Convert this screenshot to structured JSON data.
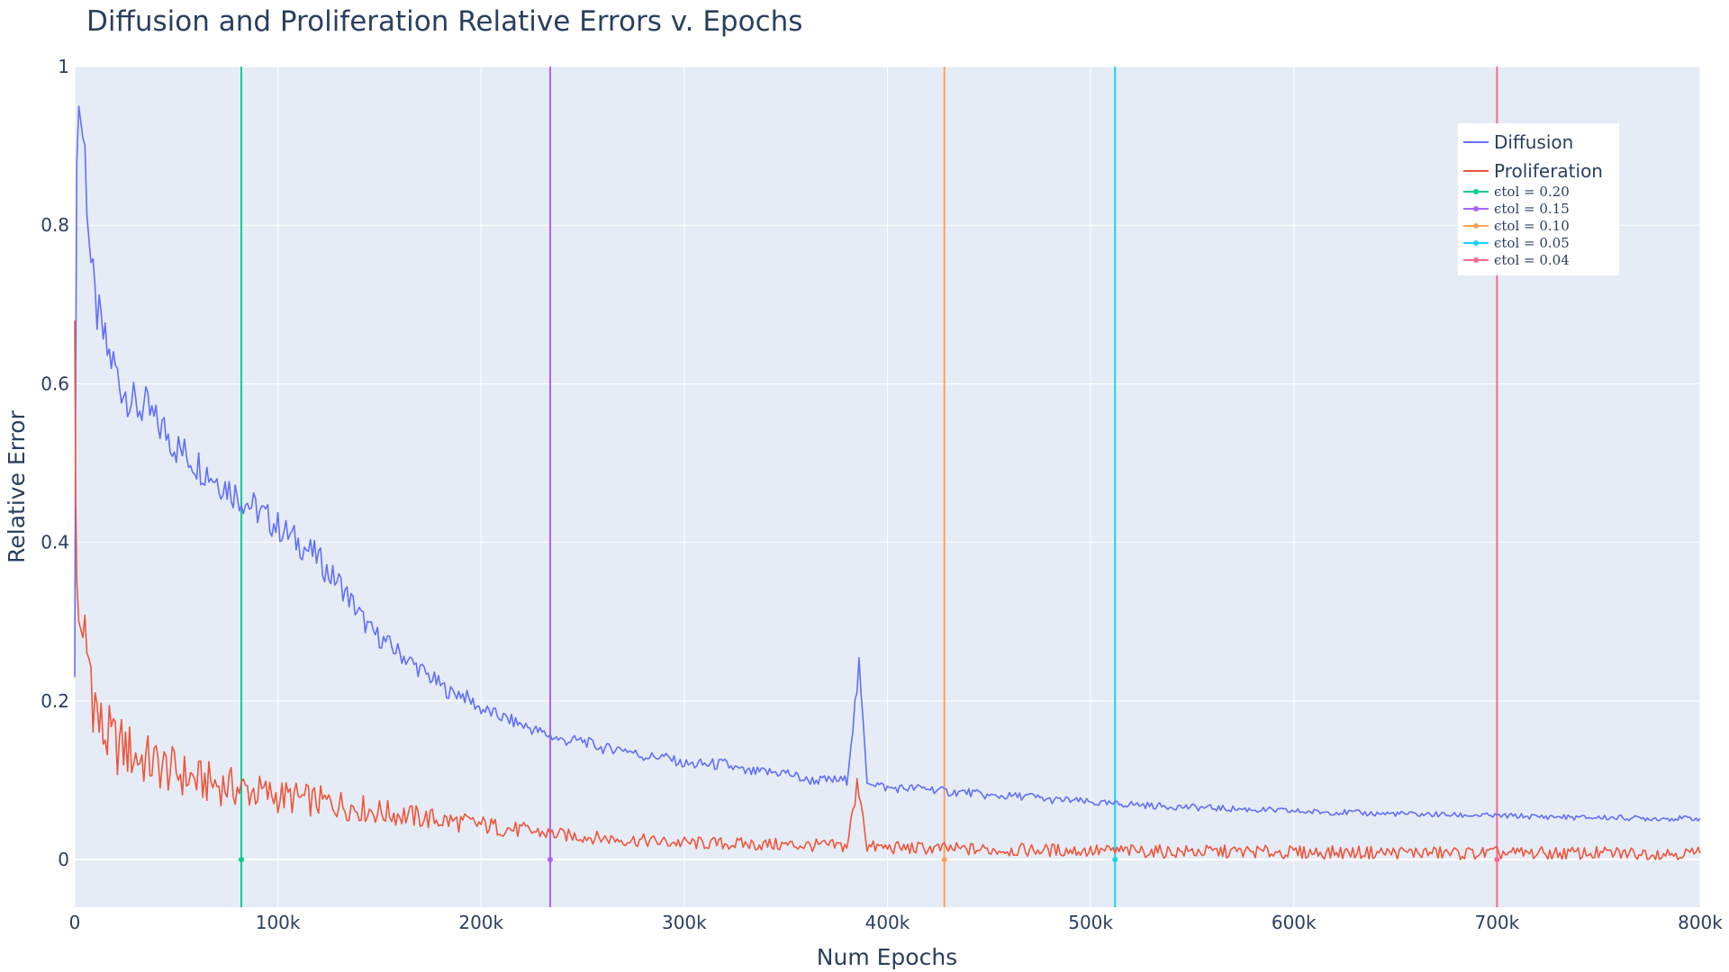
{
  "chart_data": {
    "type": "line",
    "title": "Diffusion and Proliferation Relative Errors v. Epochs",
    "xlabel": "Num Epochs",
    "ylabel": "Relative Error",
    "xlim": [
      0,
      800000
    ],
    "ylim": [
      -0.06,
      1.0
    ],
    "grid": true,
    "legend_position": "top-right",
    "x_ticks": [
      0,
      100000,
      200000,
      300000,
      400000,
      500000,
      600000,
      700000,
      800000
    ],
    "x_tick_labels": [
      "0",
      "100k",
      "200k",
      "300k",
      "400k",
      "500k",
      "600k",
      "700k",
      "800k"
    ],
    "y_ticks": [
      0,
      0.2,
      0.4,
      0.6,
      0.8,
      1
    ],
    "y_tick_labels": [
      "0",
      "0.2",
      "0.4",
      "0.6",
      "0.8",
      "1"
    ],
    "series": [
      {
        "name": "Diffusion",
        "color": "#636efa",
        "x": [
          0,
          500,
          1000,
          2000,
          3000,
          4000,
          5000,
          6000,
          8000,
          10000,
          12000,
          14000,
          16000,
          18000,
          20000,
          22000,
          25000,
          28000,
          30000,
          35000,
          40000,
          45000,
          50000,
          55000,
          60000,
          65000,
          70000,
          75000,
          80000,
          85000,
          90000,
          95000,
          100000,
          105000,
          110000,
          115000,
          120000,
          125000,
          130000,
          135000,
          140000,
          145000,
          150000,
          155000,
          160000,
          165000,
          170000,
          175000,
          180000,
          185000,
          190000,
          195000,
          200000,
          210000,
          220000,
          230000,
          240000,
          250000,
          260000,
          270000,
          280000,
          290000,
          300000,
          310000,
          320000,
          330000,
          340000,
          350000,
          360000,
          370000,
          380000,
          386000,
          390000,
          400000,
          410000,
          420000,
          430000,
          440000,
          450000,
          460000,
          470000,
          480000,
          490000,
          500000,
          510000,
          520000,
          530000,
          540000,
          550000,
          560000,
          570000,
          580000,
          590000,
          600000,
          610000,
          620000,
          630000,
          640000,
          650000,
          660000,
          670000,
          680000,
          690000,
          700000,
          710000,
          720000,
          730000,
          740000,
          750000,
          760000,
          770000,
          780000,
          790000,
          800000
        ],
        "values": [
          0.23,
          0.62,
          0.88,
          0.95,
          0.93,
          0.91,
          0.89,
          0.84,
          0.75,
          0.7,
          0.68,
          0.66,
          0.64,
          0.63,
          0.62,
          0.6,
          0.59,
          0.58,
          0.57,
          0.57,
          0.55,
          0.54,
          0.52,
          0.51,
          0.5,
          0.49,
          0.48,
          0.47,
          0.46,
          0.45,
          0.44,
          0.43,
          0.42,
          0.41,
          0.4,
          0.39,
          0.38,
          0.36,
          0.35,
          0.33,
          0.31,
          0.29,
          0.28,
          0.27,
          0.26,
          0.25,
          0.24,
          0.23,
          0.22,
          0.21,
          0.21,
          0.2,
          0.19,
          0.18,
          0.17,
          0.16,
          0.15,
          0.15,
          0.14,
          0.14,
          0.13,
          0.13,
          0.12,
          0.12,
          0.12,
          0.11,
          0.11,
          0.11,
          0.1,
          0.1,
          0.1,
          0.24,
          0.1,
          0.09,
          0.09,
          0.09,
          0.085,
          0.085,
          0.08,
          0.08,
          0.08,
          0.075,
          0.075,
          0.072,
          0.07,
          0.07,
          0.068,
          0.067,
          0.066,
          0.065,
          0.064,
          0.063,
          0.062,
          0.061,
          0.06,
          0.06,
          0.059,
          0.058,
          0.058,
          0.057,
          0.057,
          0.056,
          0.056,
          0.055,
          0.055,
          0.054,
          0.054,
          0.053,
          0.053,
          0.053,
          0.052,
          0.052,
          0.052,
          0.052
        ]
      },
      {
        "name": "Proliferation",
        "color": "#ef553b",
        "x": [
          0,
          500,
          1000,
          2000,
          3000,
          4000,
          5000,
          6000,
          8000,
          10000,
          12000,
          14000,
          16000,
          18000,
          20000,
          25000,
          30000,
          35000,
          40000,
          50000,
          60000,
          70000,
          80000,
          90000,
          100000,
          110000,
          120000,
          130000,
          140000,
          150000,
          160000,
          170000,
          180000,
          190000,
          200000,
          210000,
          220000,
          230000,
          240000,
          250000,
          260000,
          270000,
          280000,
          290000,
          300000,
          320000,
          340000,
          360000,
          380000,
          386000,
          390000,
          400000,
          420000,
          440000,
          460000,
          480000,
          500000,
          520000,
          540000,
          560000,
          580000,
          600000,
          620000,
          640000,
          660000,
          680000,
          700000,
          720000,
          740000,
          760000,
          780000,
          800000
        ],
        "values": [
          0.68,
          0.45,
          0.35,
          0.3,
          0.29,
          0.28,
          0.27,
          0.26,
          0.24,
          0.2,
          0.17,
          0.16,
          0.155,
          0.15,
          0.145,
          0.14,
          0.13,
          0.125,
          0.12,
          0.11,
          0.1,
          0.095,
          0.09,
          0.085,
          0.08,
          0.077,
          0.073,
          0.07,
          0.065,
          0.06,
          0.057,
          0.053,
          0.05,
          0.047,
          0.044,
          0.04,
          0.037,
          0.034,
          0.031,
          0.029,
          0.027,
          0.025,
          0.024,
          0.022,
          0.021,
          0.02,
          0.019,
          0.018,
          0.017,
          0.1,
          0.016,
          0.015,
          0.014,
          0.013,
          0.012,
          0.012,
          0.011,
          0.011,
          0.01,
          0.01,
          0.01,
          0.009,
          0.009,
          0.009,
          0.009,
          0.008,
          0.008,
          0.008,
          0.008,
          0.008,
          0.008,
          0.008
        ]
      }
    ],
    "vlines": [
      {
        "label": "ϵtol = 0.20",
        "x": 82000,
        "color": "#00cc96"
      },
      {
        "label": "ϵtol = 0.15",
        "x": 234000,
        "color": "#ab63fa"
      },
      {
        "label": "ϵtol = 0.10",
        "x": 428000,
        "color": "#ffa15a"
      },
      {
        "label": "ϵtol = 0.05",
        "x": 512000,
        "color": "#19d3f3"
      },
      {
        "label": "ϵtol = 0.04",
        "x": 700000,
        "color": "#ff6692"
      }
    ],
    "plot_bg": "#e5ecf6",
    "grid_color": "#ffffff"
  }
}
